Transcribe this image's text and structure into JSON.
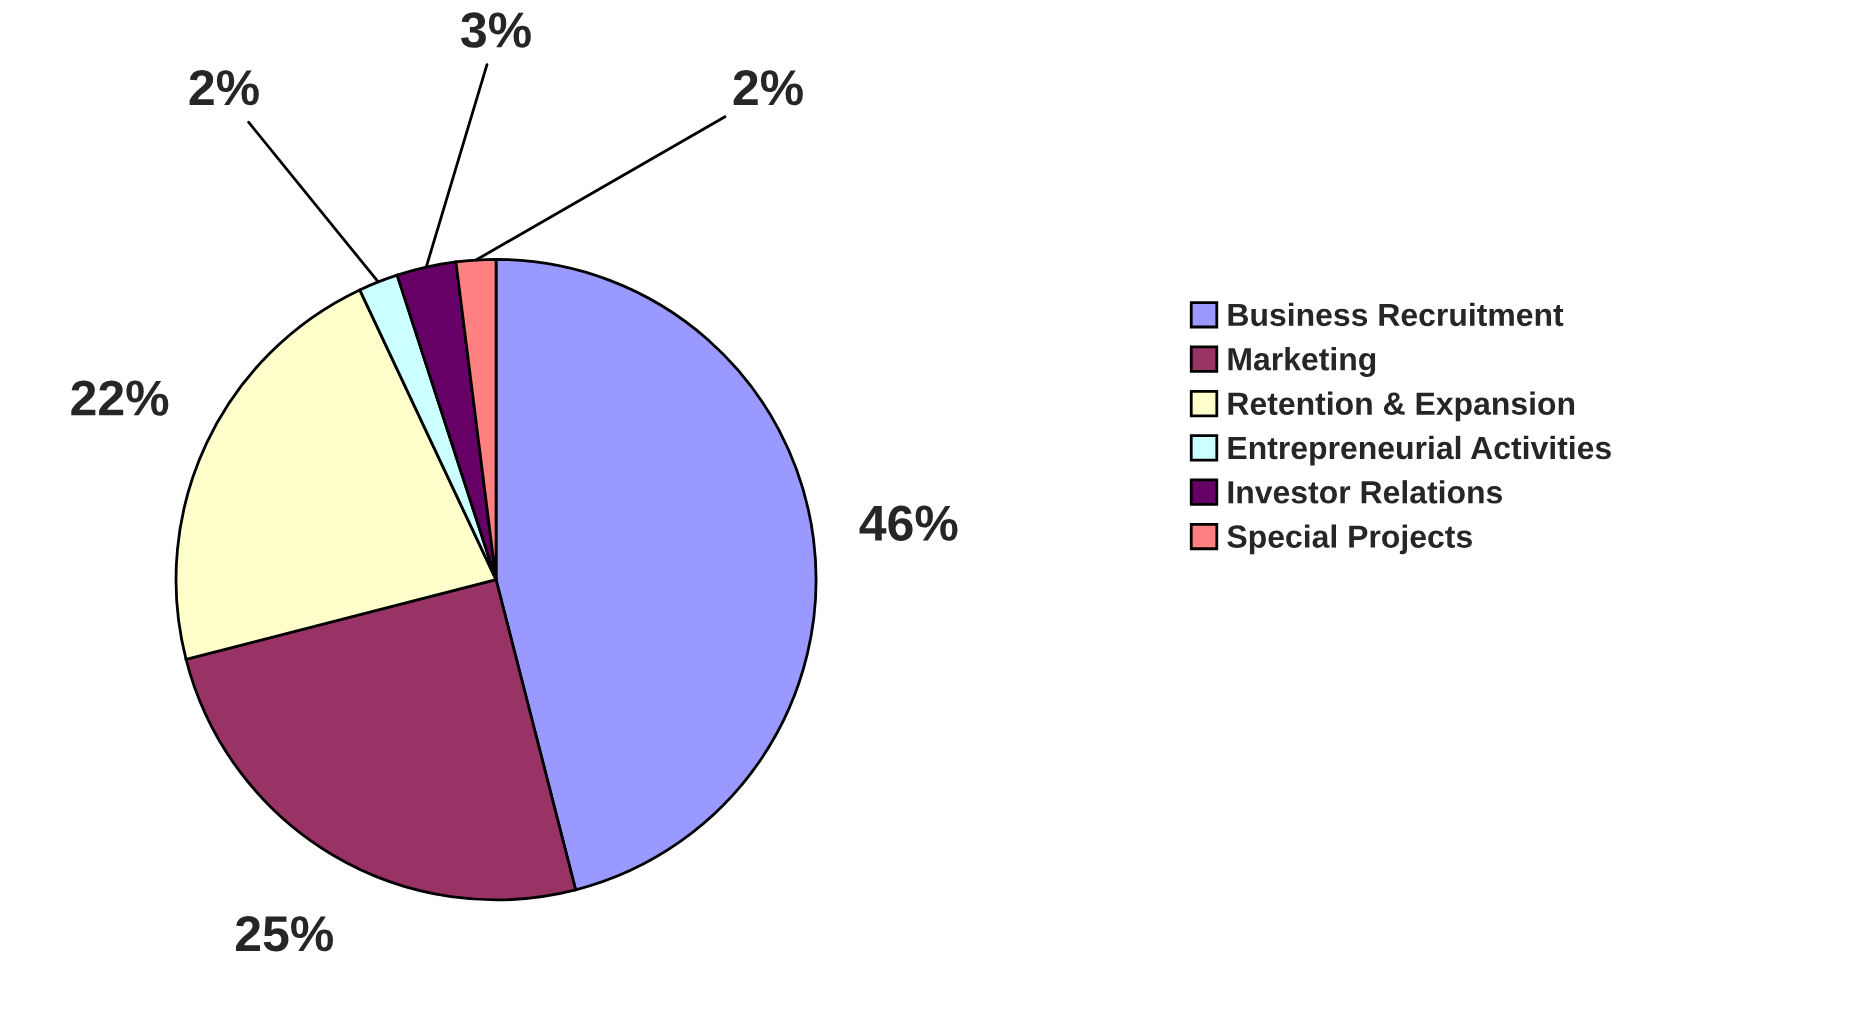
{
  "chart_data": {
    "type": "pie",
    "categories": [
      "Business Recruitment",
      "Marketing",
      "Retention & Expansion",
      "Entrepreneurial Activities",
      "Investor Relations",
      "Special Projects"
    ],
    "values": [
      46,
      25,
      22,
      2,
      3,
      2
    ],
    "colors": [
      "#9999ff",
      "#993366",
      "#ffffcc",
      "#ccffff",
      "#660066",
      "#ff8080"
    ],
    "value_labels": [
      "46%",
      "25%",
      "22%",
      "2%",
      "3%",
      "2%"
    ],
    "legend": "right"
  }
}
